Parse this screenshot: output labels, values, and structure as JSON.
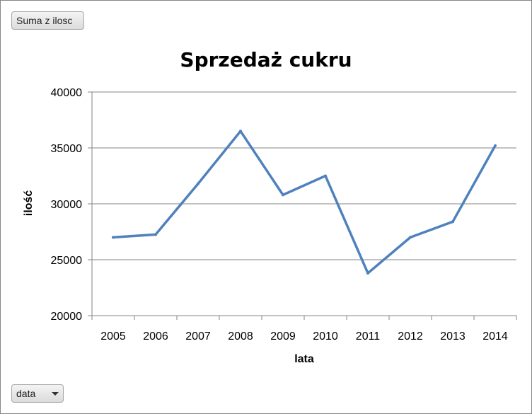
{
  "buttons": {
    "value_field": "Suma z ilosc",
    "axis_field": "data"
  },
  "chart_data": {
    "type": "line",
    "title": "Sprzedaż cukru",
    "xlabel": "lata",
    "ylabel": "ilość",
    "categories": [
      "2005",
      "2006",
      "2007",
      "2008",
      "2009",
      "2010",
      "2011",
      "2012",
      "2013",
      "2014"
    ],
    "series": [
      {
        "values": [
          27000,
          27250,
          31800,
          36500,
          30800,
          32500,
          23800,
          27000,
          28400,
          35200
        ]
      }
    ],
    "ylim": [
      20000,
      40000
    ],
    "yticks": [
      "20000",
      "25000",
      "30000",
      "35000",
      "40000"
    ],
    "grid": true,
    "color": "#4f81bd"
  }
}
